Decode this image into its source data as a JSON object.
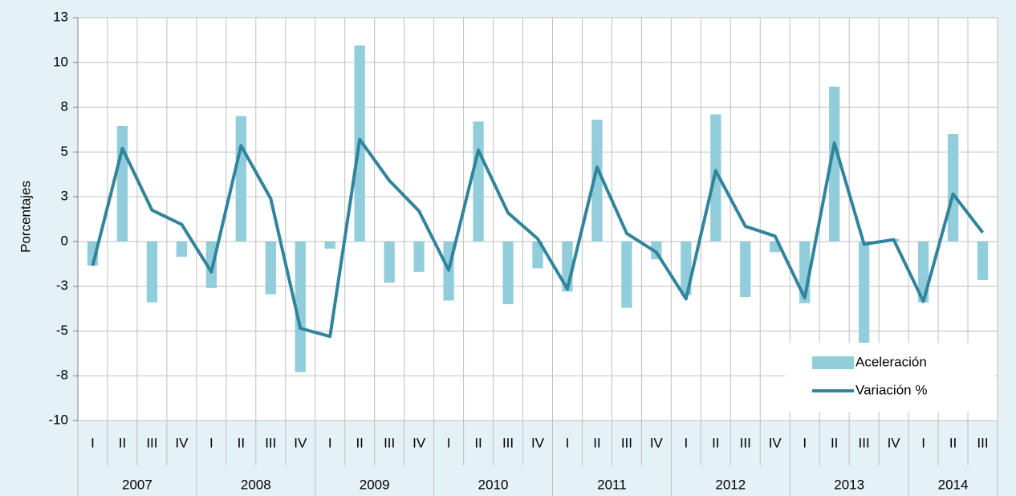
{
  "chart_data": {
    "type": "bar_line",
    "y_axis_label": "Porcentajes",
    "categories": [
      "I",
      "II",
      "III",
      "IV",
      "I",
      "II",
      "III",
      "IV",
      "I",
      "II",
      "III",
      "IV",
      "I",
      "II",
      "III",
      "IV",
      "I",
      "II",
      "III",
      "IV",
      "I",
      "II",
      "III",
      "IV",
      "I",
      "II",
      "III",
      "IV",
      "I",
      "II",
      "III"
    ],
    "years": [
      "2007",
      "2008",
      "2009",
      "2010",
      "2011",
      "2012",
      "2013",
      "2014"
    ],
    "series": [
      {
        "name": "Aceleración",
        "type": "bar",
        "color": "#92cddc",
        "values": [
          -1.35,
          6.45,
          -3.4,
          -0.85,
          -2.6,
          7.0,
          -2.95,
          -7.3,
          -0.4,
          10.95,
          -2.3,
          -1.7,
          -3.3,
          6.7,
          -3.5,
          -1.5,
          -2.8,
          6.8,
          -3.7,
          -1.0,
          -3.0,
          7.1,
          -3.1,
          -0.6,
          -3.45,
          8.65,
          -5.7,
          0.15,
          -3.4,
          6.0,
          -2.15
        ]
      },
      {
        "name": "Variación %",
        "type": "line",
        "color": "#31849b",
        "values": [
          -1.35,
          5.2,
          1.75,
          0.95,
          -1.7,
          5.35,
          2.4,
          -4.85,
          -5.3,
          5.7,
          3.4,
          1.7,
          -1.6,
          5.1,
          1.6,
          0.15,
          -2.65,
          4.15,
          0.45,
          -0.6,
          -3.2,
          3.95,
          0.85,
          0.3,
          -3.15,
          5.5,
          -0.15,
          0.1,
          -3.35,
          2.65,
          0.5
        ]
      }
    ],
    "ylim": [
      -10,
      12.5
    ],
    "yticks": [
      {
        "value": 12.5,
        "label": "13"
      },
      10,
      {
        "value": 7.5,
        "label": "8"
      },
      5,
      {
        "value": 2.5,
        "label": "3"
      },
      0,
      {
        "value": -2.5,
        "label": "-3"
      },
      -5,
      {
        "value": -7.5,
        "label": "-8"
      },
      -10
    ],
    "grid": true,
    "legend": "lower right"
  }
}
